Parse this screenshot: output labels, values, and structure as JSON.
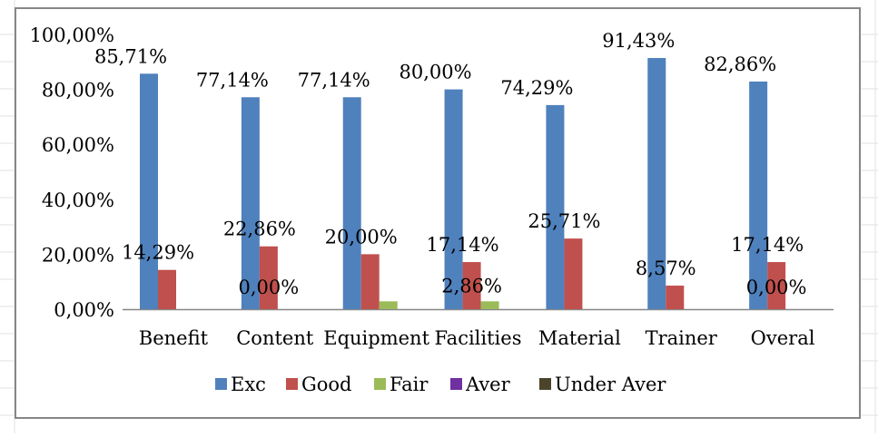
{
  "chart_data": {
    "type": "bar",
    "title": "",
    "xlabel": "",
    "ylabel": "",
    "ylim": [
      0,
      100
    ],
    "ytick_step": 20,
    "ytick_labels": [
      "0,00%",
      "20,00%",
      "40,00%",
      "60,00%",
      "80,00%",
      "100,00%"
    ],
    "grid": false,
    "legend_position": "bottom",
    "categories": [
      "Benefit",
      "Content",
      "Equipment",
      "Facilities",
      "Material",
      "Trainer",
      "Overal"
    ],
    "series": [
      {
        "name": "Exc",
        "color": "#4F81BD",
        "values": [
          85.71,
          77.14,
          77.14,
          80.0,
          74.29,
          91.43,
          82.86
        ],
        "labels": [
          "85,71%",
          "77,14%",
          "77,14%",
          "80,00%",
          "74,29%",
          "91,43%",
          "82,86%"
        ]
      },
      {
        "name": "Good",
        "color": "#C0504D",
        "values": [
          14.29,
          22.86,
          20.0,
          17.14,
          25.71,
          8.57,
          17.14
        ],
        "labels": [
          "14,29%",
          "22,86%",
          "20,00%",
          "17,14%",
          "25,71%",
          "8,57%",
          "17,14%"
        ]
      },
      {
        "name": "Fair",
        "color": "#9BBB59",
        "values": [
          0,
          0,
          2.86,
          2.86,
          0,
          0,
          0
        ],
        "labels": [
          null,
          "0,00%",
          null,
          "2,86%",
          null,
          null,
          "0,00%"
        ]
      },
      {
        "name": "Aver",
        "color": "#7030A0",
        "values": [
          0,
          0,
          0,
          0,
          0,
          0,
          0
        ],
        "labels": [
          null,
          null,
          null,
          null,
          null,
          null,
          null
        ]
      },
      {
        "name": "Under Aver",
        "color": "#4A452A",
        "values": [
          0,
          0,
          0,
          0,
          0,
          0,
          0
        ],
        "labels": [
          null,
          null,
          null,
          null,
          null,
          null,
          null
        ]
      }
    ]
  }
}
